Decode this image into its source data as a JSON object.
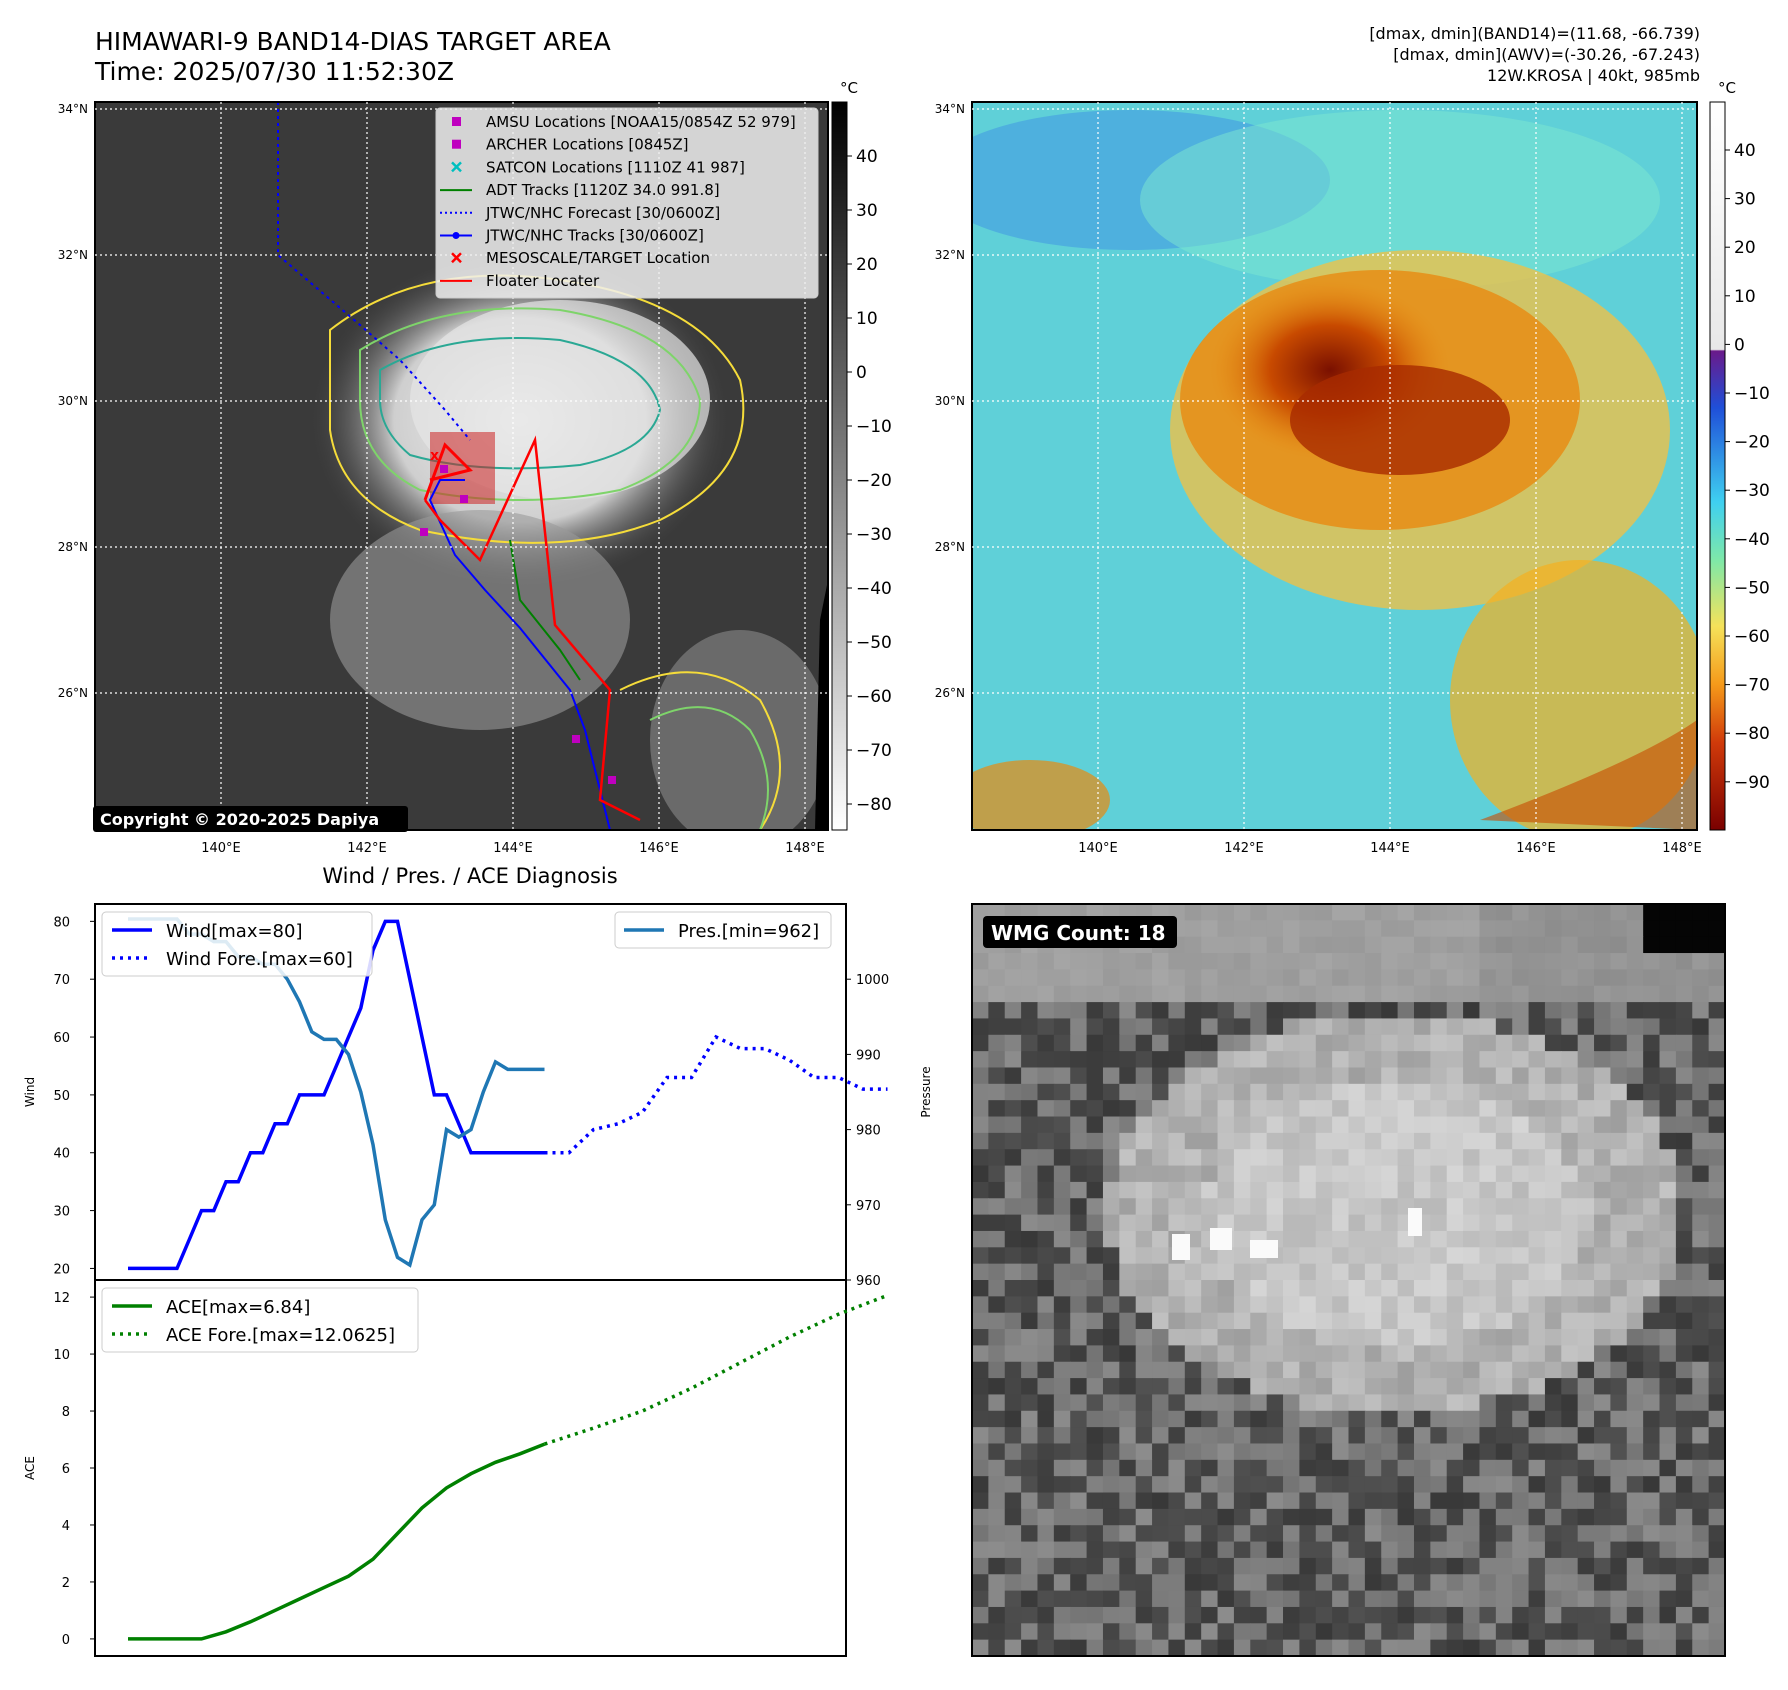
{
  "header": {
    "title": "HIMAWARI-9 BAND14-DIAS TARGET AREA",
    "time": "Time: 2025/07/30 11:52:30Z",
    "stats_line1": "[dmax, dmin](BAND14)=(11.68, -66.739)",
    "stats_line2": "[dmax, dmin](AWV)=(-30.26, -67.243)",
    "storm_line": "12W.KROSA | 40kt, 985mb"
  },
  "map_axes": {
    "lat_labels": [
      "34°N",
      "32°N",
      "30°N",
      "28°N",
      "26°N"
    ],
    "lon_labels": [
      "140°E",
      "142°E",
      "144°E",
      "146°E",
      "148°E"
    ]
  },
  "left_map": {
    "legend": [
      {
        "label": "AMSU Locations [NOAA15/0854Z 52 979]",
        "marker": "square",
        "color": "#bf00bf"
      },
      {
        "label": "ARCHER Locations [0845Z]",
        "marker": "square",
        "color": "#bf00bf"
      },
      {
        "label": "SATCON Locations [1110Z 41 987]",
        "marker": "x",
        "color": "#00bfbf"
      },
      {
        "label": "ADT Tracks [1120Z 34.0 991.8]",
        "marker": "line",
        "color": "#008000"
      },
      {
        "label": "JTWC/NHC Forecast [30/0600Z]",
        "marker": "dotted",
        "color": "#0000ff"
      },
      {
        "label": "JTWC/NHC Tracks [30/0600Z]",
        "marker": "line-dot",
        "color": "#0000ff"
      },
      {
        "label": "MESOSCALE/TARGET Location",
        "marker": "x",
        "color": "#ff0000"
      },
      {
        "label": "Floater Locater",
        "marker": "line",
        "color": "#ff0000"
      }
    ],
    "copyright": "Copyright © 2020-2025 Dapiya",
    "colorbar_unit": "°C",
    "colorbar_ticks": [
      "40",
      "30",
      "20",
      "10",
      "0",
      "−10",
      "−20",
      "−30",
      "−40",
      "−50",
      "−60",
      "−70",
      "−80"
    ]
  },
  "right_map": {
    "colorbar_unit": "°C",
    "colorbar_ticks": [
      "40",
      "30",
      "20",
      "10",
      "0",
      "−10",
      "−20",
      "−30",
      "−40",
      "−50",
      "−60",
      "−70",
      "−80",
      "−90"
    ]
  },
  "wmg": {
    "label": "WMG Count: 18"
  },
  "chart_data": [
    {
      "type": "line",
      "title": "Wind / Pres. / ACE Diagnosis",
      "ylabel": "Wind",
      "ylabel_right": "Pressure",
      "ylim": [
        18,
        83
      ],
      "ylim_right": [
        960,
        1010
      ],
      "yticks": [
        "80",
        "70",
        "60",
        "50",
        "40",
        "30",
        "20"
      ],
      "yticks_right": [
        "1000",
        "990",
        "980",
        "970",
        "960"
      ],
      "series": [
        {
          "name": "Wind[max=80]",
          "style": "solid",
          "color": "#0000ff",
          "x": [
            0,
            1,
            1.5,
            2,
            2.5,
            3,
            3.5,
            4,
            4.5,
            5,
            5.5,
            6,
            6.5,
            7,
            7.5,
            8,
            8.5,
            9,
            9.5,
            10,
            10.5,
            11,
            11.5,
            12,
            12.5,
            13,
            13.5,
            14,
            14.5,
            15,
            15.5,
            16,
            16.5,
            17
          ],
          "y": [
            20,
            20,
            20,
            20,
            25,
            30,
            30,
            35,
            35,
            40,
            40,
            45,
            45,
            50,
            50,
            50,
            55,
            60,
            65,
            75,
            80,
            80,
            70,
            60,
            50,
            50,
            45,
            40,
            40,
            40,
            40,
            40,
            40,
            40
          ]
        },
        {
          "name": "Wind Fore.[max=60]",
          "style": "dotted",
          "color": "#0000ff",
          "x": [
            17,
            18,
            19,
            20,
            21,
            22,
            23,
            24,
            25,
            26,
            27,
            28,
            29,
            30,
            31
          ],
          "y": [
            40,
            40,
            44,
            45,
            47,
            53,
            53,
            60,
            58,
            58,
            56,
            53,
            53,
            51,
            51
          ]
        },
        {
          "name": "Pres.[min=962]",
          "style": "solid",
          "color": "#1f77b4",
          "axis": "right",
          "x": [
            0,
            1,
            1.5,
            2,
            2.5,
            3,
            3.5,
            4,
            4.5,
            5,
            5.5,
            6,
            6.5,
            7,
            7.5,
            8,
            8.5,
            9,
            9.5,
            10,
            10.5,
            11,
            11.5,
            12,
            12.5,
            13,
            13.5,
            14,
            14.5,
            15,
            15.5,
            16,
            16.5,
            17
          ],
          "y": [
            1008,
            1008,
            1008,
            1008,
            1006,
            1006,
            1005,
            1005,
            1003,
            1003,
            1002,
            1002,
            1000,
            997,
            993,
            992,
            992,
            990,
            985,
            978,
            968,
            963,
            962,
            968,
            970,
            980,
            979,
            980,
            985,
            989,
            988,
            988,
            988,
            988
          ]
        }
      ]
    },
    {
      "type": "line",
      "ylabel": "ACE",
      "ylim": [
        -0.6,
        12.6
      ],
      "yticks": [
        "12",
        "10",
        "8",
        "6",
        "4",
        "2",
        "0"
      ],
      "series": [
        {
          "name": "ACE[max=6.84]",
          "style": "solid",
          "color": "#008000",
          "x": [
            0,
            1,
            2,
            3,
            4,
            5,
            6,
            7,
            8,
            9,
            10,
            11,
            12,
            13,
            14,
            15,
            16,
            17
          ],
          "y": [
            0,
            0,
            0,
            0,
            0.25,
            0.6,
            1.0,
            1.4,
            1.8,
            2.2,
            2.8,
            3.7,
            4.6,
            5.3,
            5.8,
            6.2,
            6.5,
            6.84
          ]
        },
        {
          "name": "ACE Fore.[max=12.0625]",
          "style": "dotted",
          "color": "#008000",
          "x": [
            17,
            19,
            21,
            23,
            25,
            27,
            29,
            31
          ],
          "y": [
            6.84,
            7.4,
            8.0,
            8.8,
            9.7,
            10.6,
            11.4,
            12.06
          ]
        }
      ]
    }
  ]
}
